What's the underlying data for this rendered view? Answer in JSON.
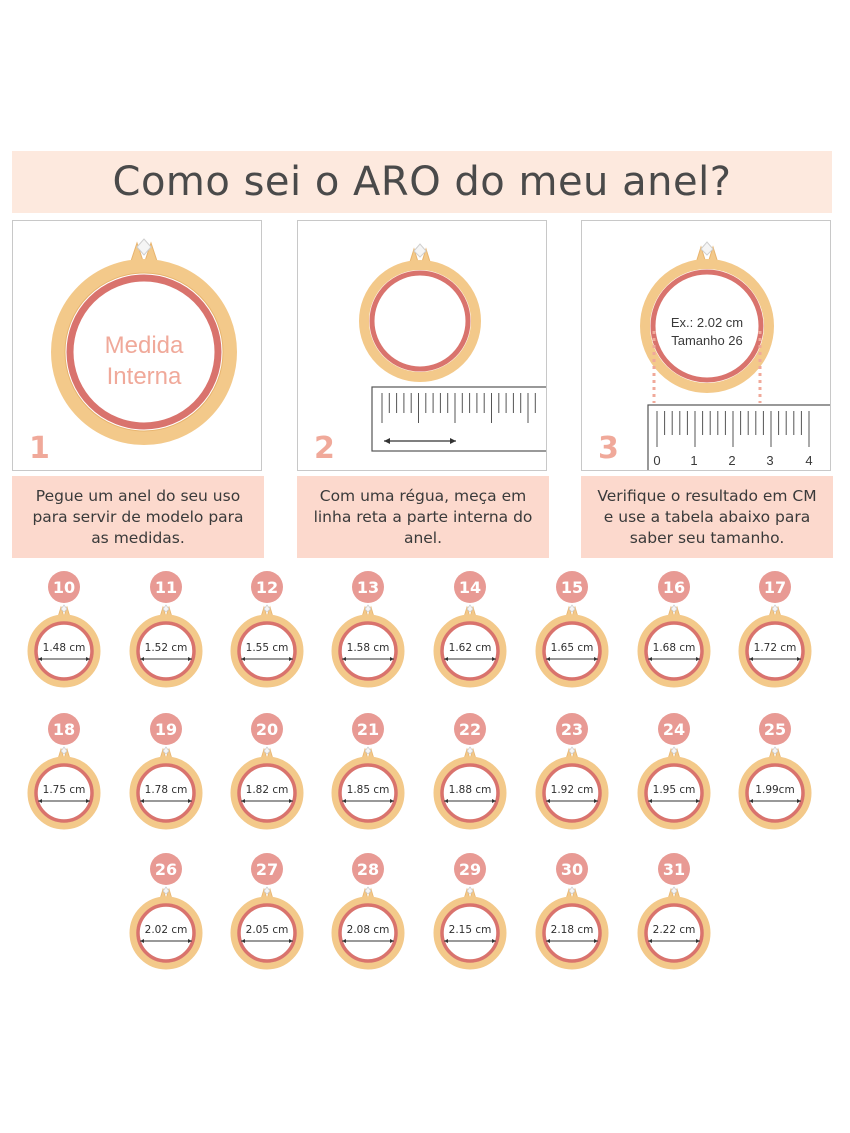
{
  "title": "Como sei o ARO do meu anel?",
  "steps": [
    {
      "number": "1",
      "ring_label_1": "Medida",
      "ring_label_2": "Interna",
      "text": "Pegue um anel do seu uso para servir de modelo para as medidas."
    },
    {
      "number": "2",
      "text": "Com uma régua, meça em linha reta a parte interna do anel."
    },
    {
      "number": "3",
      "example_1": "Ex.: 2.02 cm",
      "example_2": "Tamanho 26",
      "ruler_ticks": [
        "0",
        "1",
        "2",
        "3",
        "4"
      ],
      "text": "Verifique o resultado em CM e use a tabela abaixo para saber seu tamanho."
    }
  ],
  "sizes": [
    {
      "size": "10",
      "measure": "1.48 cm"
    },
    {
      "size": "11",
      "measure": "1.52 cm"
    },
    {
      "size": "12",
      "measure": "1.55 cm"
    },
    {
      "size": "13",
      "measure": "1.58 cm"
    },
    {
      "size": "14",
      "measure": "1.62 cm"
    },
    {
      "size": "15",
      "measure": "1.65 cm"
    },
    {
      "size": "16",
      "measure": "1.68 cm"
    },
    {
      "size": "17",
      "measure": "1.72 cm"
    },
    {
      "size": "18",
      "measure": "1.75 cm"
    },
    {
      "size": "19",
      "measure": "1.78 cm"
    },
    {
      "size": "20",
      "measure": "1.82 cm"
    },
    {
      "size": "21",
      "measure": "1.85 cm"
    },
    {
      "size": "22",
      "measure": "1.88 cm"
    },
    {
      "size": "23",
      "measure": "1.92 cm"
    },
    {
      "size": "24",
      "measure": "1.95 cm"
    },
    {
      "size": "25",
      "measure": "1.99cm"
    },
    {
      "size": "26",
      "measure": "2.02 cm"
    },
    {
      "size": "27",
      "measure": "2.05 cm"
    },
    {
      "size": "28",
      "measure": "2.08 cm"
    },
    {
      "size": "29",
      "measure": "2.15 cm"
    },
    {
      "size": "30",
      "measure": "2.18 cm"
    },
    {
      "size": "31",
      "measure": "2.22 cm"
    }
  ],
  "colors": {
    "gold": "#f3c98a",
    "gold_dark": "#e8b46e",
    "rose": "#d9736d",
    "pink_badge": "#e89a94",
    "band": "#fde9de",
    "text_box": "#fcd9cd",
    "step_number": "#f0a99a"
  }
}
